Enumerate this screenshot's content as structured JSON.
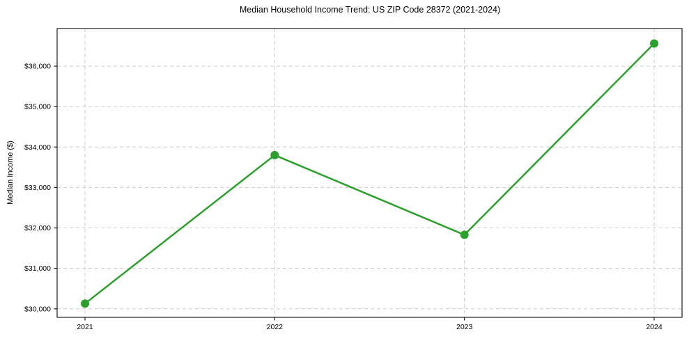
{
  "chart_data": {
    "type": "line",
    "title": "Median Household Income Trend: US ZIP Code 28372 (2021-2024)",
    "ylabel": "Median Income ($)",
    "xlabel": "",
    "x": [
      "2021",
      "2022",
      "2023",
      "2024"
    ],
    "series": [
      {
        "name": "Median Household Income",
        "values": [
          30130,
          33800,
          31830,
          36560
        ]
      }
    ],
    "y_ticks": [
      30000,
      31000,
      32000,
      33000,
      34000,
      35000,
      36000
    ],
    "y_tick_labels": [
      "$30,000",
      "$31,000",
      "$32,000",
      "$33,000",
      "$34,000",
      "$35,000",
      "$36,000"
    ],
    "ylim": [
      29790,
      36930
    ],
    "grid": true,
    "grid_style": "dashed",
    "legend": "none",
    "colors": {
      "line": "#2ca02c",
      "marker": "#2ca02c",
      "grid": "#cccccc",
      "frame": "#1a1a1a",
      "text": "#000000",
      "background": "#ffffff"
    }
  }
}
